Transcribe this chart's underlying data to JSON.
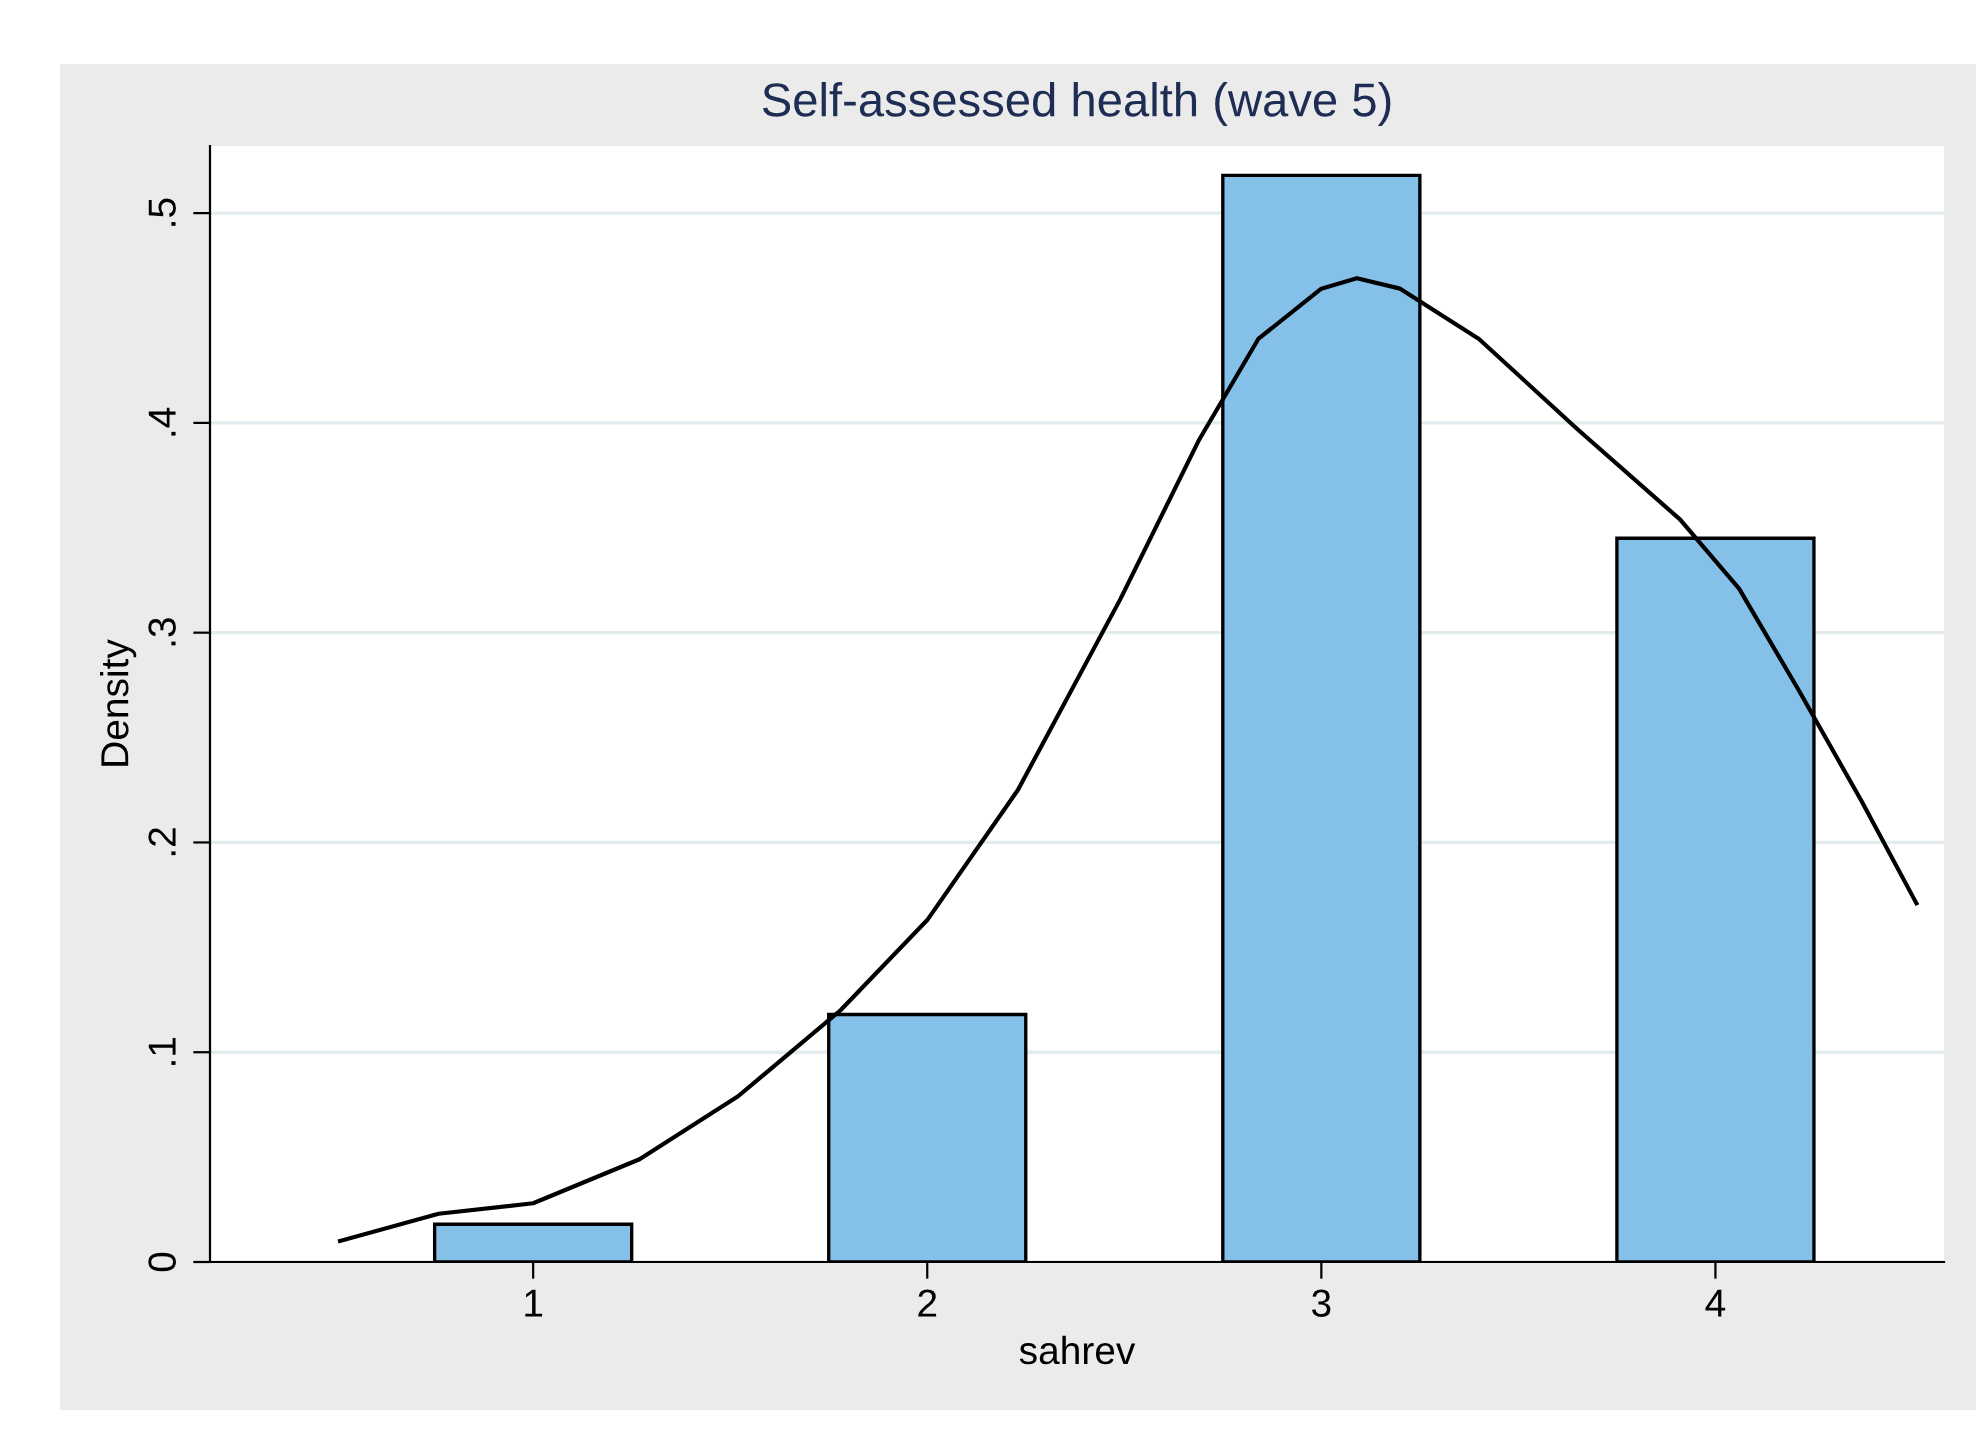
{
  "chart_data": {
    "type": "bar",
    "title": "Self-assessed health (wave 5)",
    "xlabel": "sahrev",
    "ylabel": "Density",
    "x": [
      1,
      2,
      3,
      4
    ],
    "series": [
      {
        "color": "#85c0e9",
        "values": [
          0.018,
          0.118,
          0.518,
          0.345
        ]
      },
      {
        "type": "line",
        "color": "#000000",
        "x": [
          0.51,
          0.76,
          1.0,
          1.27,
          1.52,
          1.78,
          2.0,
          2.23,
          2.49,
          2.69,
          2.84,
          3.0,
          3.09,
          3.2,
          3.4,
          3.65,
          3.91,
          4.06,
          4.21,
          4.37,
          4.51
        ],
        "values": [
          0.01,
          0.023,
          0.028,
          0.049,
          0.079,
          0.12,
          0.163,
          0.225,
          0.316,
          0.392,
          0.44,
          0.464,
          0.469,
          0.464,
          0.44,
          0.397,
          0.354,
          0.321,
          0.273,
          0.22,
          0.171
        ]
      }
    ],
    "xlim": [
      0.18,
      4.58
    ],
    "xticks": [
      1,
      2,
      3,
      4
    ],
    "ylim": [
      0,
      0.532
    ],
    "yticks": [
      0,
      {
        "value": 0.1,
        "label": ".1"
      },
      {
        "value": 0.2,
        "label": ".2"
      },
      {
        "value": 0.3,
        "label": ".3"
      },
      {
        "value": 0.4,
        "label": ".4"
      },
      {
        "value": 0.5,
        "label": ".5"
      }
    ],
    "grid": "y",
    "marker": "none",
    "line_style": "solid"
  }
}
